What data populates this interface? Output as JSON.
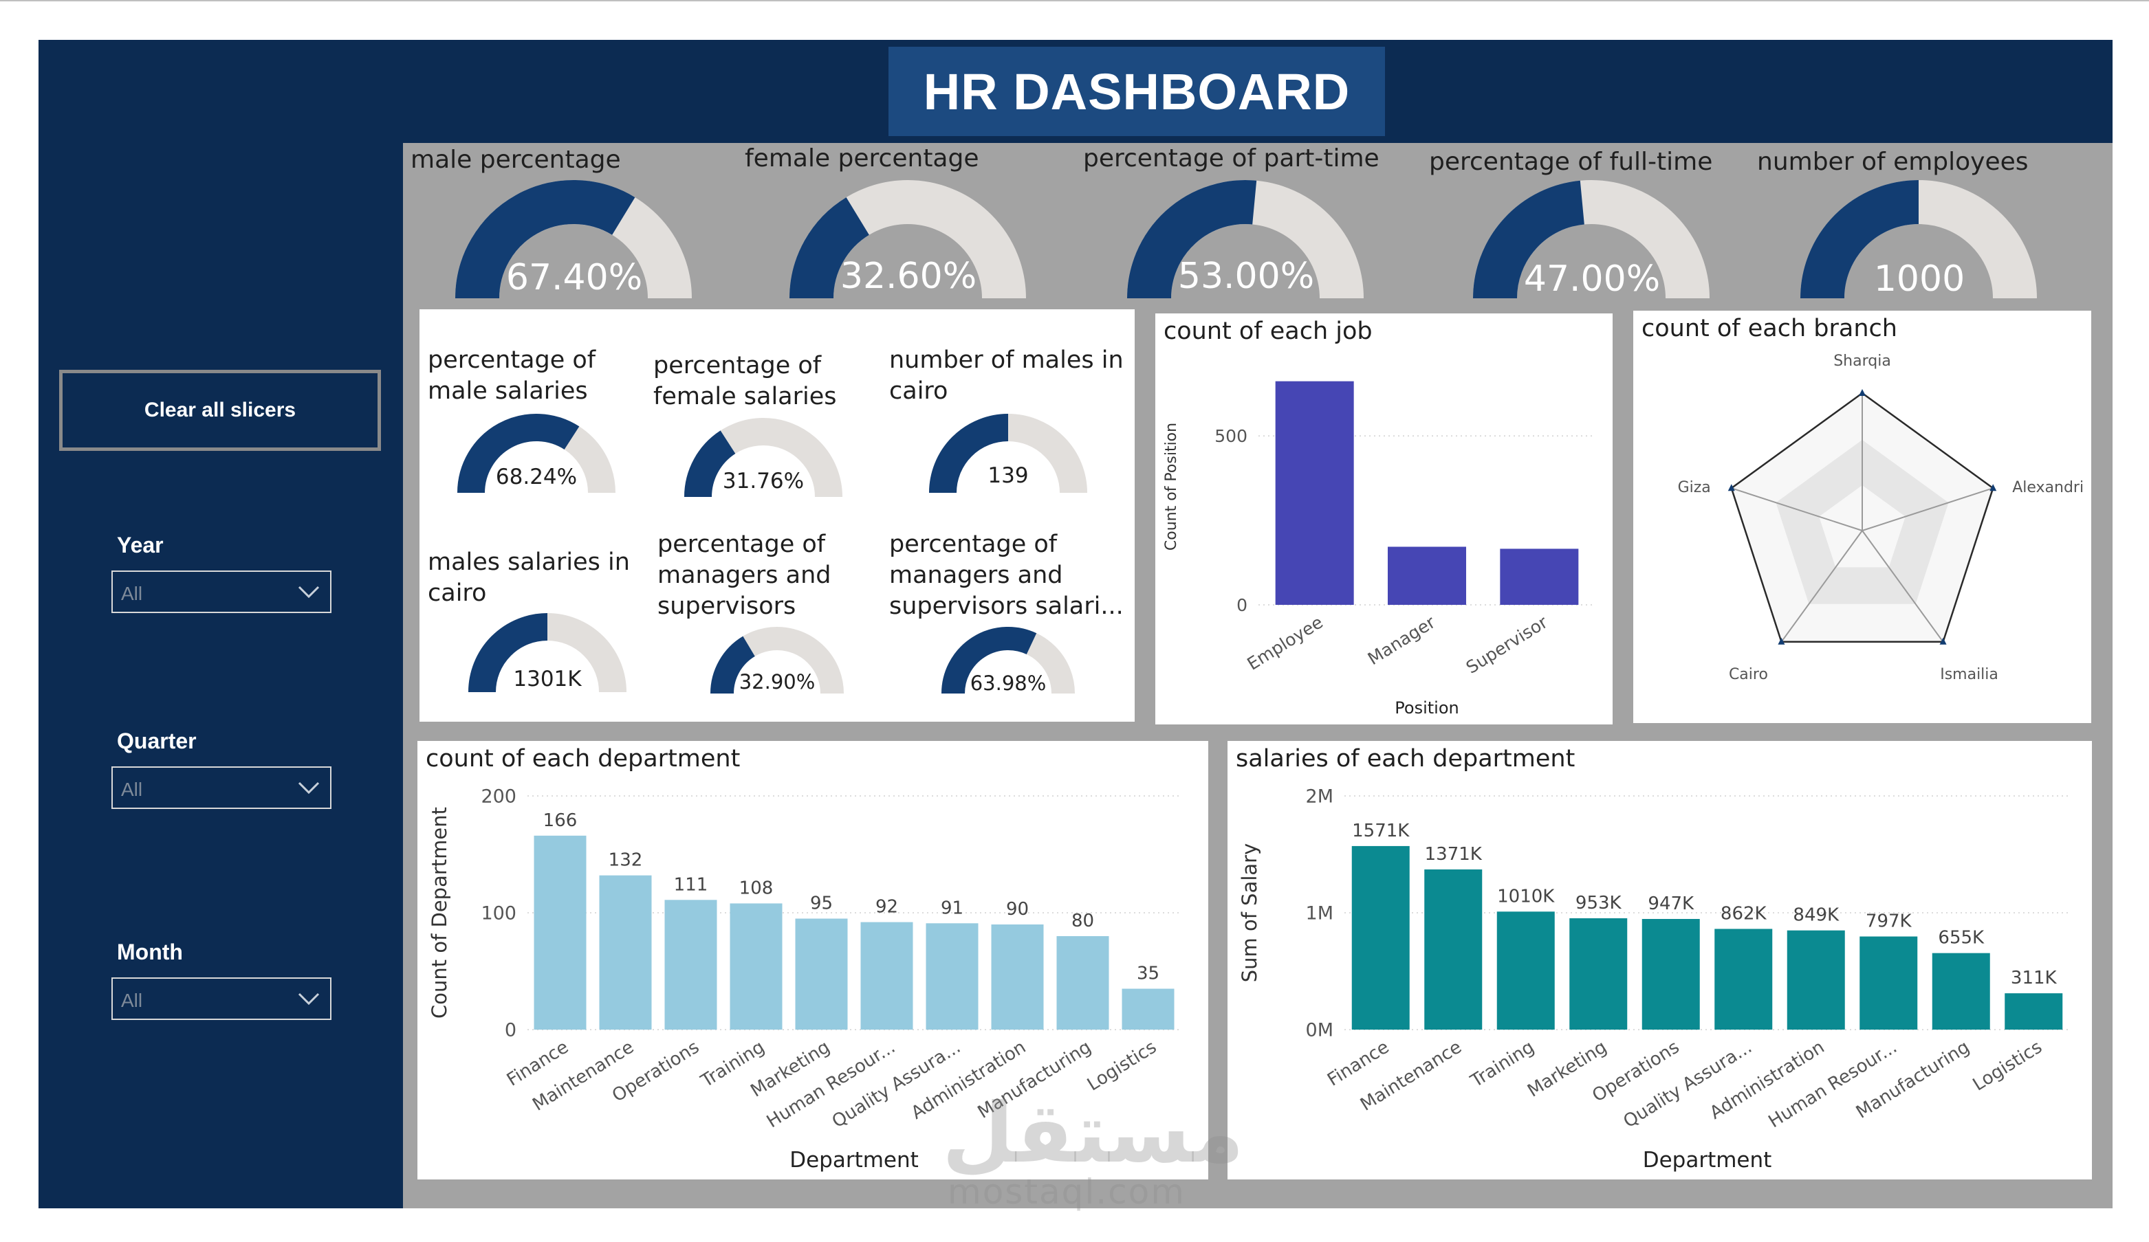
{
  "title": "HR DASHBOARD",
  "sidebar": {
    "clear_label": "Clear all slicers",
    "slicers": [
      {
        "label": "Year",
        "value": "All"
      },
      {
        "label": "Quarter",
        "value": "All"
      },
      {
        "label": "Month",
        "value": "All"
      }
    ]
  },
  "colors": {
    "navy": "#0c2b52",
    "gauge_fill": "#123d72",
    "gauge_track": "#e2dfdc",
    "job_bar": "#4646b4",
    "dept_bar": "#95cadf",
    "salary_bar": "#0b8a91"
  },
  "kpis": [
    {
      "label": "male percentage",
      "value": "67.40%",
      "fraction": 0.674
    },
    {
      "label": "female percentage",
      "value": "32.60%",
      "fraction": 0.326
    },
    {
      "label": "percentage of part-time",
      "value": "53.00%",
      "fraction": 0.53
    },
    {
      "label": "percentage of full-time",
      "value": "47.00%",
      "fraction": 0.47
    },
    {
      "label": "number of employees",
      "value": "1000",
      "fraction": 0.5
    }
  ],
  "small_kpis": [
    {
      "label": "percentage of male salaries",
      "value": "68.24%",
      "fraction": 0.6824
    },
    {
      "label": "percentage of female salaries",
      "value": "31.76%",
      "fraction": 0.3176
    },
    {
      "label": "number of males in cairo",
      "value": "139",
      "fraction": 0.5
    },
    {
      "label": "males salaries in cairo",
      "value": "1301K",
      "fraction": 0.5
    },
    {
      "label": "percentage of managers and supervisors",
      "value": "32.90%",
      "fraction": 0.329
    },
    {
      "label": "percentage of managers and supervisors salari...",
      "value": "63.98%",
      "fraction": 0.6398
    }
  ],
  "chart_data": [
    {
      "type": "bar",
      "title": "count of each job",
      "xlabel": "Position",
      "ylabel": "Count of Position",
      "categories": [
        "Employee",
        "Manager",
        "Supervisor"
      ],
      "values": [
        662,
        172,
        166
      ],
      "ylim": [
        0,
        700
      ],
      "yticks": [
        "0",
        "500"
      ],
      "grid": true
    },
    {
      "type": "radar",
      "title": "count of each branch",
      "categories": [
        "Sharqia",
        "Alexandri",
        "Ismailia",
        "Cairo",
        "Giza"
      ],
      "values": [
        200,
        200,
        200,
        200,
        200
      ],
      "rmax": 200
    },
    {
      "type": "bar",
      "title": "count of each department",
      "xlabel": "Department",
      "ylabel": "Count of Department",
      "categories": [
        "Finance",
        "Maintenance",
        "Operations",
        "Training",
        "Marketing",
        "Human Resour...",
        "Quality Assura...",
        "Administration",
        "Manufacturing",
        "Logistics"
      ],
      "values": [
        166,
        132,
        111,
        108,
        95,
        92,
        91,
        90,
        80,
        35
      ],
      "labels": [
        "166",
        "132",
        "111",
        "108",
        "95",
        "92",
        "91",
        "90",
        "80",
        "35"
      ],
      "ylim": [
        0,
        200
      ],
      "yticks": [
        "0",
        "100",
        "200"
      ],
      "grid": true
    },
    {
      "type": "bar",
      "title": "salaries of each department",
      "xlabel": "Department",
      "ylabel": "Sum of Salary",
      "categories": [
        "Finance",
        "Maintenance",
        "Training",
        "Marketing",
        "Operations",
        "Quality Assura...",
        "Administration",
        "Human Resour...",
        "Manufacturing",
        "Logistics"
      ],
      "values": [
        1571000,
        1371000,
        1010000,
        953000,
        947000,
        862000,
        849000,
        797000,
        655000,
        311000
      ],
      "labels": [
        "1571K",
        "1371K",
        "1010K",
        "953K",
        "947K",
        "862K",
        "849K",
        "797K",
        "655K",
        "311K"
      ],
      "ylim": [
        0,
        2000000
      ],
      "yticks": [
        "0M",
        "1M",
        "2M"
      ],
      "grid": true
    }
  ],
  "watermark": {
    "arabic": "مستقل",
    "latin": "mostaql.com"
  }
}
